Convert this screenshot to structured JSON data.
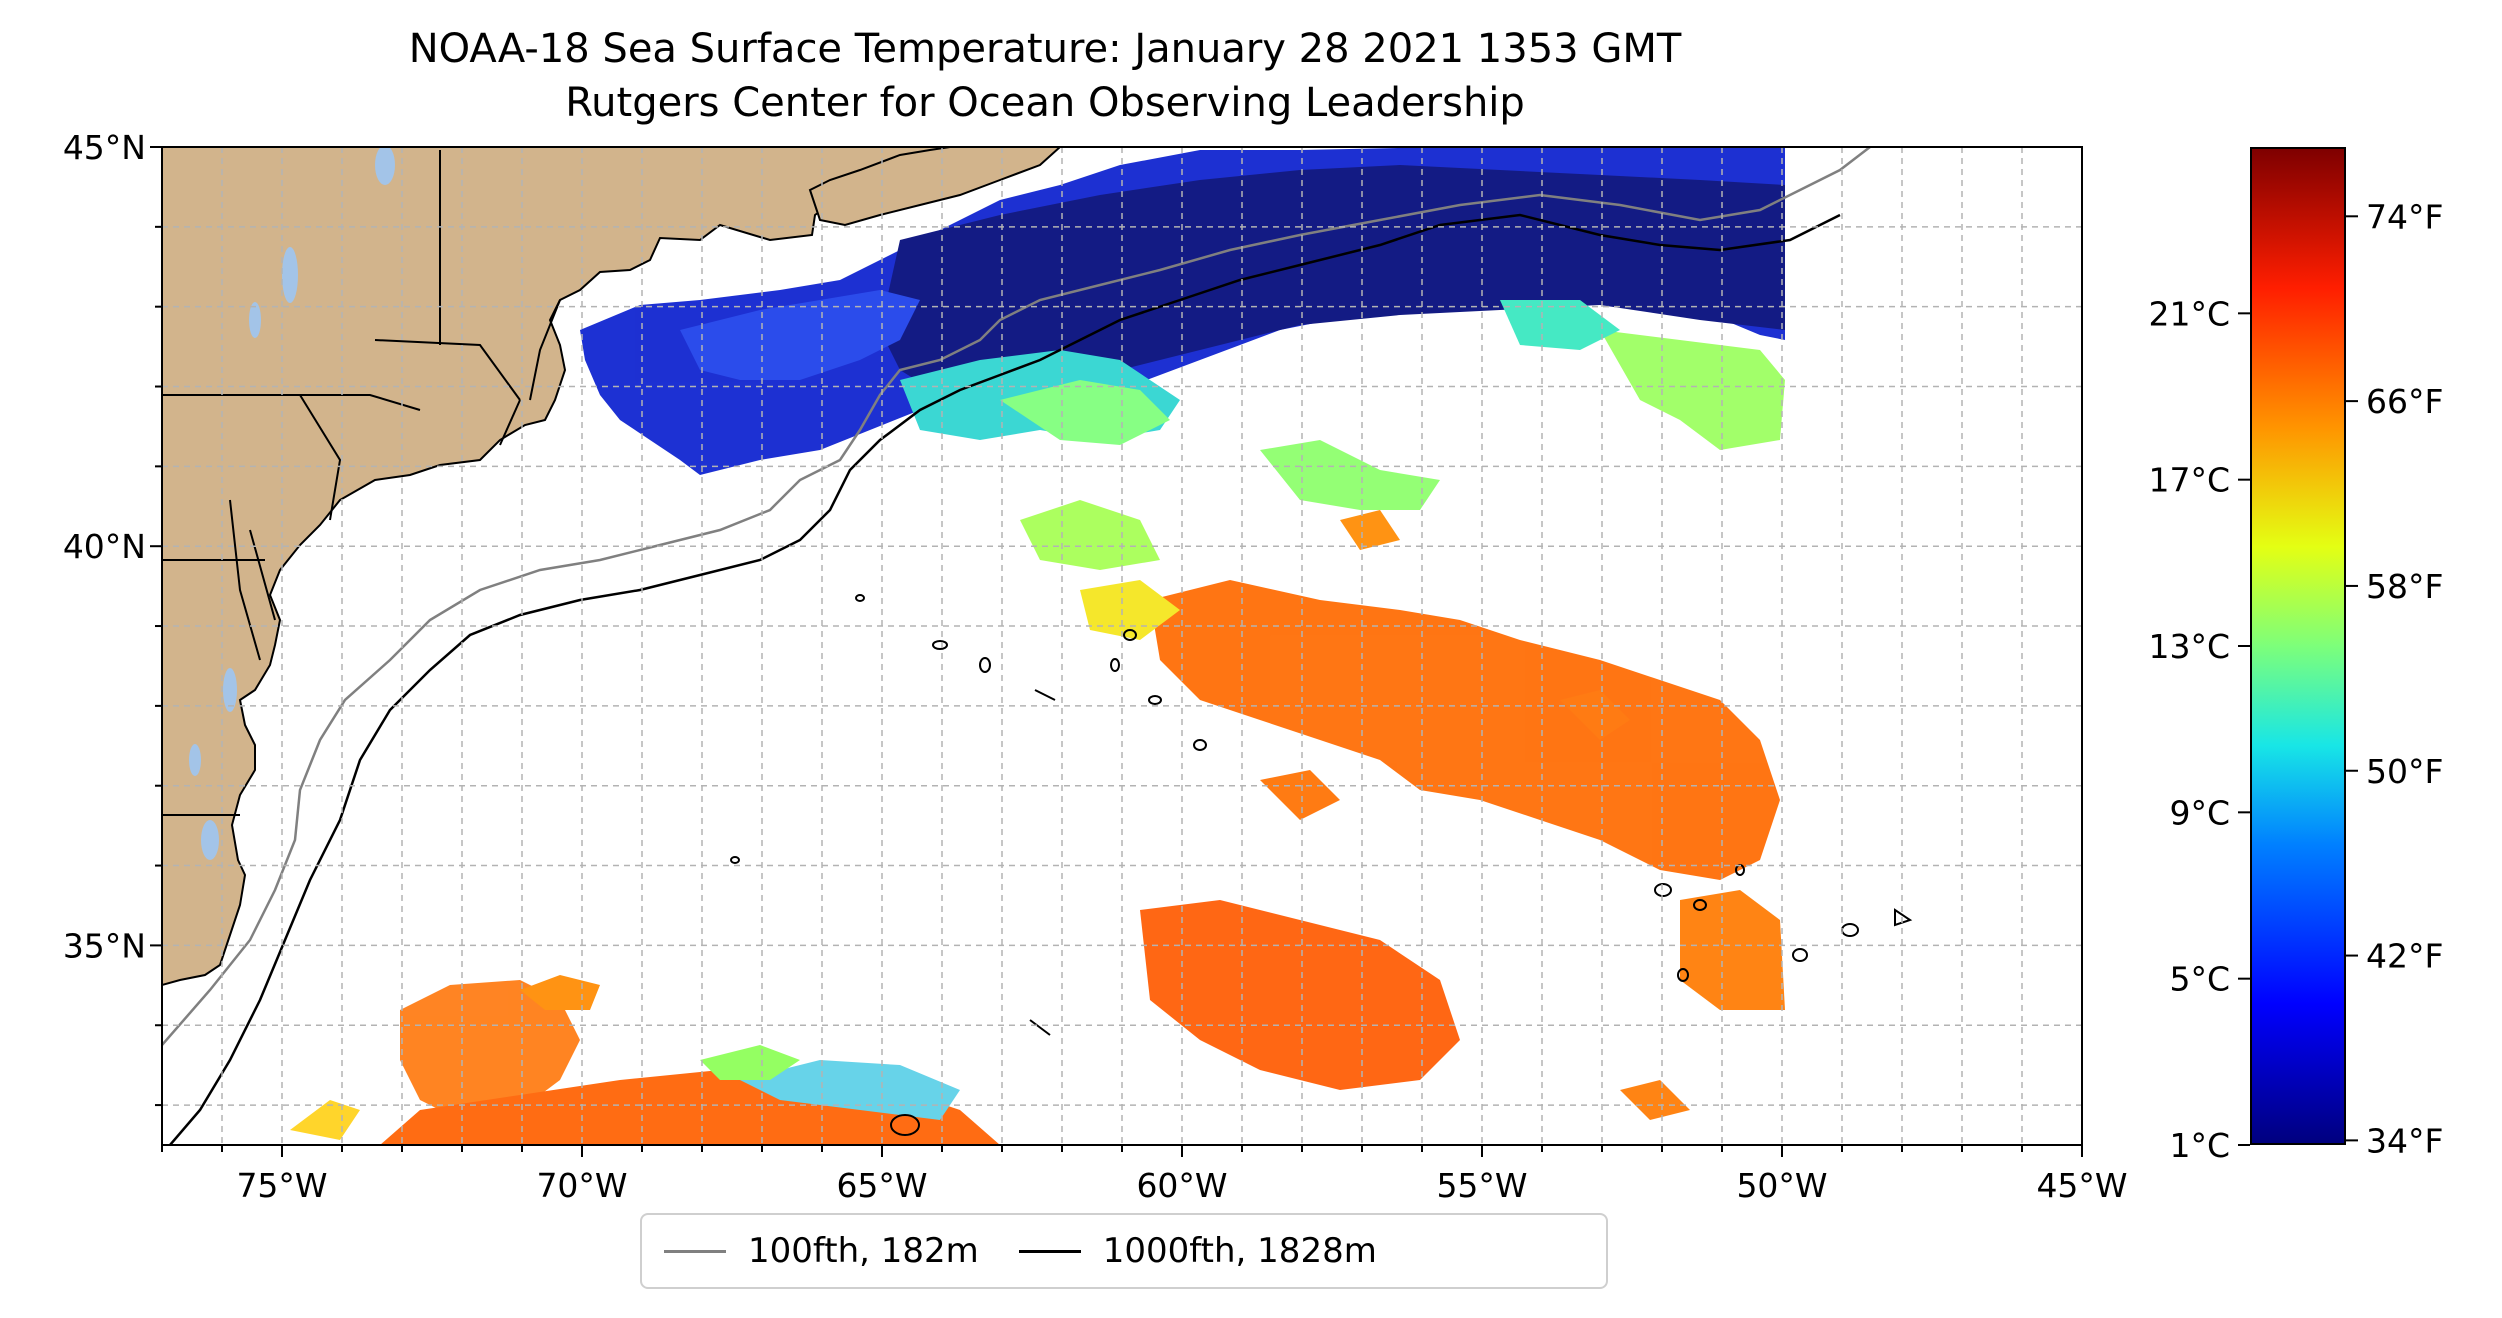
{
  "title": "NOAA-18 Sea Surface Temperature: January 28 2021 1353 GMT",
  "subtitle": "Rutgers Center for Ocean Observing Leadership",
  "map": {
    "lon_range": [
      -77,
      -45
    ],
    "lat_range": [
      32.5,
      45
    ],
    "x_tick_labels": [
      {
        "lon": -75,
        "label": "75°W"
      },
      {
        "lon": -70,
        "label": "70°W"
      },
      {
        "lon": -65,
        "label": "65°W"
      },
      {
        "lon": -60,
        "label": "60°W"
      },
      {
        "lon": -55,
        "label": "55°W"
      },
      {
        "lon": -50,
        "label": "50°W"
      },
      {
        "lon": -45,
        "label": "45°W"
      }
    ],
    "y_tick_labels": [
      {
        "lat": 45,
        "label": "45°N"
      },
      {
        "lat": 40,
        "label": "40°N"
      },
      {
        "lat": 35,
        "label": "35°N"
      }
    ],
    "gridlines": true,
    "land_color": "#d2b48c",
    "lake_color": "#a3c4e8",
    "data_extent_lon_max": -50
  },
  "legend": [
    {
      "label": "100fth, 182m",
      "color": "#808080"
    },
    {
      "label": "1000fth, 1828m",
      "color": "#000000"
    }
  ],
  "colorbar": {
    "colormap": "jet",
    "celsius_ticks": [
      {
        "value": 1,
        "label": "1°C"
      },
      {
        "value": 5,
        "label": "5°C"
      },
      {
        "value": 9,
        "label": "9°C"
      },
      {
        "value": 13,
        "label": "13°C"
      },
      {
        "value": 17,
        "label": "17°C"
      },
      {
        "value": 21,
        "label": "21°C"
      }
    ],
    "fahrenheit_ticks": [
      {
        "value": 34,
        "label": "34°F"
      },
      {
        "value": 42,
        "label": "42°F"
      },
      {
        "value": 50,
        "label": "50°F"
      },
      {
        "value": 58,
        "label": "58°F"
      },
      {
        "value": 66,
        "label": "66°F"
      },
      {
        "value": 74,
        "label": "74°F"
      }
    ],
    "range_celsius": [
      1,
      25
    ]
  }
}
